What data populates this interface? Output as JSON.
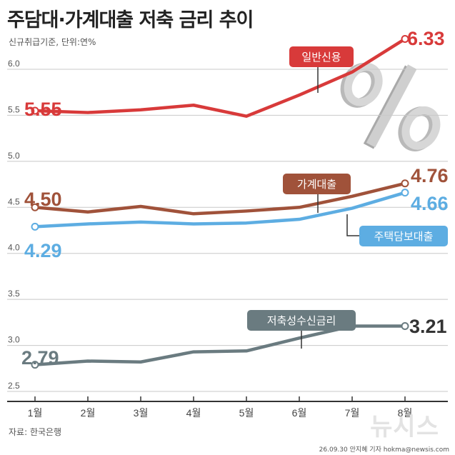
{
  "header": {
    "title": "주담대·가계대출 저축 금리 추이",
    "subtitle": "신규취급기준, 단위:연%"
  },
  "footer": {
    "source": "자료: 한국은행",
    "credit": "26.09.30 안지혜 기자 hokma@newsis.com",
    "watermark": "뉴시스"
  },
  "chart_data": {
    "type": "line",
    "categories": [
      "1월",
      "2월",
      "3월",
      "4월",
      "5월",
      "6월",
      "7월",
      "8월"
    ],
    "ylim": [
      2.5,
      6.0
    ],
    "yticks": [
      "6.0",
      "5.5",
      "5.0",
      "4.5",
      "4.0",
      "3.5",
      "3.0",
      "2.5"
    ],
    "grid": true,
    "series": [
      {
        "name": "일반신용",
        "color": "#d83a3a",
        "values": [
          5.55,
          5.53,
          5.56,
          5.61,
          5.49,
          5.72,
          5.97,
          6.33
        ],
        "first_label": "5.55",
        "last_label": "6.33"
      },
      {
        "name": "가계대출",
        "color": "#a0523a",
        "values": [
          4.5,
          4.45,
          4.51,
          4.43,
          4.46,
          4.5,
          4.62,
          4.76
        ],
        "first_label": "4.50",
        "last_label": "4.76"
      },
      {
        "name": "주택담보대출",
        "color": "#5dade2",
        "values": [
          4.29,
          4.32,
          4.34,
          4.32,
          4.33,
          4.37,
          4.49,
          4.66
        ],
        "first_label": "4.29",
        "last_label": "4.66"
      },
      {
        "name": "저축성수신금리",
        "color": "#6a7b80",
        "values": [
          2.79,
          2.83,
          2.82,
          2.93,
          2.94,
          3.08,
          3.21,
          3.21
        ],
        "first_label": "2.79",
        "last_label": "3.21"
      }
    ]
  }
}
